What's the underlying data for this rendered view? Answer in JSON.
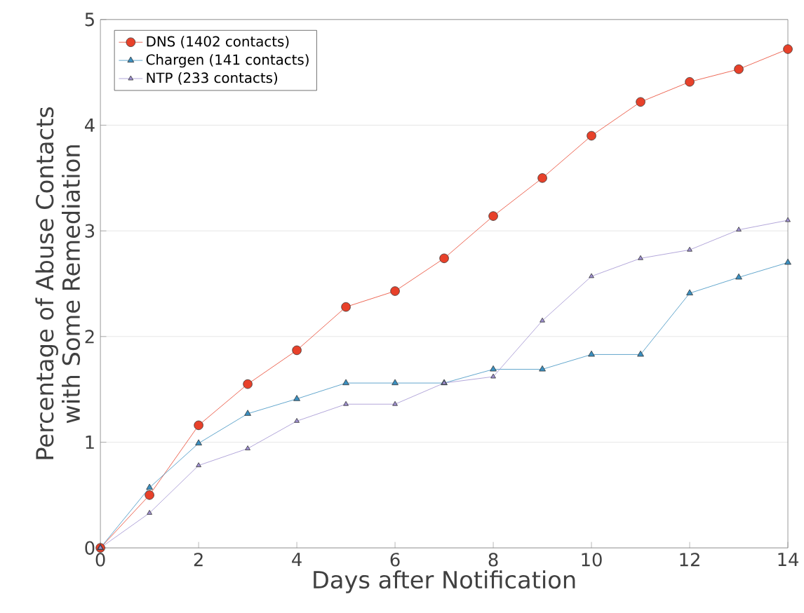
{
  "chart_data": {
    "type": "line",
    "xlabel": "Days after Notification",
    "ylabel": "Percentage of Abuse Contacts\nwith Some Remediation",
    "x": [
      0,
      1,
      2,
      3,
      4,
      5,
      6,
      7,
      8,
      9,
      10,
      11,
      12,
      13,
      14
    ],
    "series": [
      {
        "name": "DNS (1402 contacts)",
        "color": "#e8412a",
        "marker": "circle",
        "values": [
          0,
          0.5,
          1.16,
          1.55,
          1.87,
          2.28,
          2.43,
          2.74,
          3.14,
          3.5,
          3.9,
          4.22,
          4.41,
          4.53,
          4.72
        ]
      },
      {
        "name": "Chargen (141 contacts)",
        "color": "#3a8fc0",
        "marker": "triangle",
        "values": [
          0,
          0.57,
          0.99,
          1.27,
          1.41,
          1.56,
          1.56,
          1.56,
          1.69,
          1.69,
          1.83,
          1.83,
          2.41,
          2.56,
          2.7
        ]
      },
      {
        "name": "NTP (233 contacts)",
        "color": "#9e8fd0",
        "marker": "triangle",
        "values": [
          0,
          0.33,
          0.78,
          0.94,
          1.2,
          1.36,
          1.36,
          1.56,
          1.62,
          2.15,
          2.57,
          2.74,
          2.82,
          3.01,
          3.1
        ]
      }
    ],
    "xlim": [
      0,
      14
    ],
    "ylim": [
      0,
      5
    ],
    "xticks": [
      0,
      2,
      4,
      6,
      8,
      10,
      12,
      14
    ],
    "yticks": [
      0,
      1,
      2,
      3,
      4,
      5
    ],
    "grid": "y",
    "legend": "top left",
    "line_style": "solid"
  }
}
